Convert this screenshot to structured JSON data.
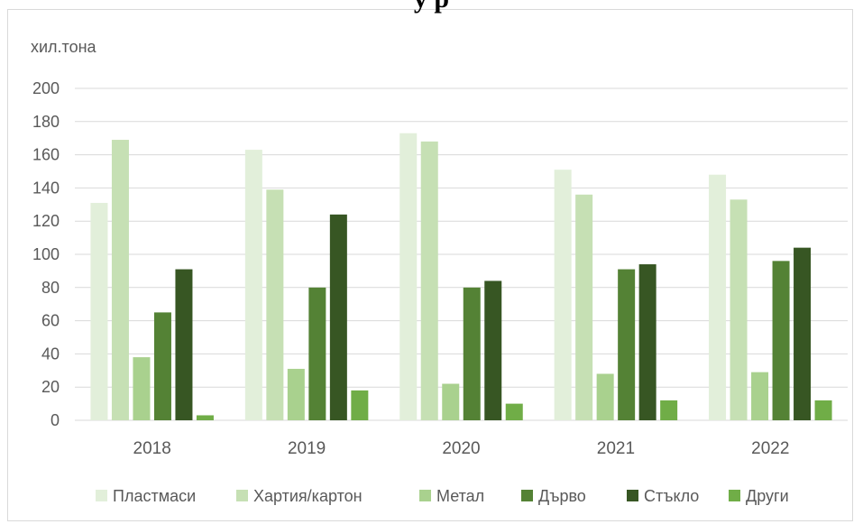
{
  "chart_data": {
    "type": "bar",
    "title": "у р",
    "ylabel": "хил.тона",
    "xlabel": "",
    "categories": [
      "2018",
      "2019",
      "2020",
      "2021",
      "2022"
    ],
    "ylim": [
      0,
      200
    ],
    "yticks": [
      0,
      20,
      40,
      60,
      80,
      100,
      120,
      140,
      160,
      180,
      200
    ],
    "grid": true,
    "legend_position": "bottom",
    "series": [
      {
        "name": "Пластмаси",
        "color": "#e2efda",
        "values": [
          131,
          163,
          173,
          151,
          148
        ]
      },
      {
        "name": "Хартия/картон",
        "color": "#c6e0b4",
        "values": [
          169,
          139,
          168,
          136,
          133
        ]
      },
      {
        "name": "Метал",
        "color": "#a9d18e",
        "values": [
          38,
          31,
          22,
          28,
          29
        ]
      },
      {
        "name": "Дърво",
        "color": "#548235",
        "values": [
          65,
          80,
          80,
          91,
          96
        ]
      },
      {
        "name": "Стъкло",
        "color": "#375623",
        "values": [
          91,
          124,
          84,
          94,
          104
        ]
      },
      {
        "name": "Други",
        "color": "#70ad47",
        "values": [
          3,
          18,
          10,
          12,
          12
        ]
      }
    ]
  }
}
